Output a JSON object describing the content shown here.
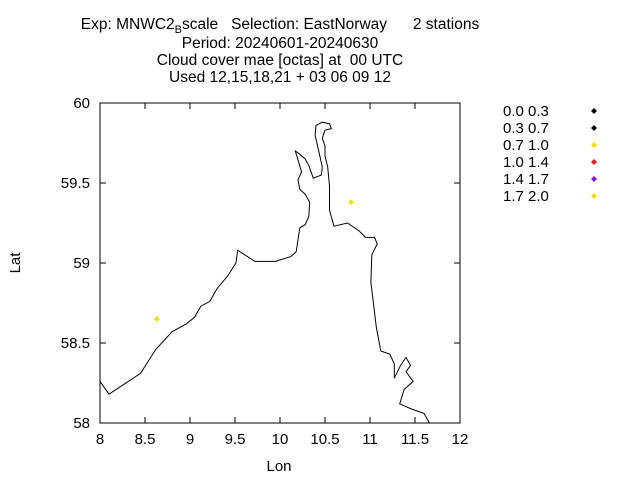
{
  "title": {
    "exp_label": "Exp: MNWC2",
    "exp_subscript": "B",
    "exp_suffix": "scale",
    "selection": "Selection: EastNorway",
    "stations": "2 stations",
    "period": "Period: 20240601-20240630",
    "variable": "Cloud cover mae [octas] at  00 UTC",
    "used": "Used 12,15,18,21 + 03 06 09 12"
  },
  "chart_data": {
    "type": "scatter",
    "xlabel": "Lon",
    "ylabel": "Lat",
    "xlim": [
      8,
      12
    ],
    "ylim": [
      58,
      60
    ],
    "x_ticks": [
      "8",
      "8.5",
      "9",
      "9.5",
      "10",
      "10.5",
      "11",
      "11.5",
      "12"
    ],
    "y_ticks": [
      "58",
      "58.5",
      "59",
      "59.5",
      "60"
    ],
    "points": [
      {
        "lon": 8.63,
        "lat": 58.65,
        "color": "#f0e000"
      },
      {
        "lon": 10.79,
        "lat": 59.38,
        "color": "#f0e000"
      }
    ],
    "legend": [
      {
        "label": "0.0 0.3",
        "color": "#000000"
      },
      {
        "label": "0.3 0.7",
        "color": "#000000"
      },
      {
        "label": "0.7 1.0",
        "color": "#f0e000"
      },
      {
        "label": "1.0 1.4",
        "color": "#e02020"
      },
      {
        "label": "1.4 1.7",
        "color": "#8a1ad0"
      },
      {
        "label": "1.7 2.0",
        "color": "#f0e000"
      }
    ],
    "legend_position": "right",
    "coastline": [
      [
        8.0,
        58.26
      ],
      [
        8.1,
        58.18
      ],
      [
        8.45,
        58.31
      ],
      [
        8.62,
        58.46
      ],
      [
        8.8,
        58.57
      ],
      [
        8.96,
        58.62
      ],
      [
        9.05,
        58.66
      ],
      [
        9.12,
        58.73
      ],
      [
        9.22,
        58.76
      ],
      [
        9.3,
        58.84
      ],
      [
        9.42,
        58.92
      ],
      [
        9.51,
        59.0
      ],
      [
        9.53,
        59.08
      ],
      [
        9.72,
        59.01
      ],
      [
        9.95,
        59.01
      ],
      [
        10.12,
        59.04
      ],
      [
        10.18,
        59.07
      ],
      [
        10.22,
        59.22
      ],
      [
        10.28,
        59.24
      ],
      [
        10.32,
        59.29
      ],
      [
        10.33,
        59.38
      ],
      [
        10.28,
        59.43
      ],
      [
        10.22,
        59.46
      ],
      [
        10.2,
        59.52
      ],
      [
        10.24,
        59.57
      ],
      [
        10.17,
        59.7
      ],
      [
        10.22,
        59.68
      ],
      [
        10.28,
        59.65
      ],
      [
        10.32,
        59.61
      ],
      [
        10.37,
        59.53
      ],
      [
        10.46,
        59.55
      ],
      [
        10.47,
        59.6
      ],
      [
        10.43,
        59.7
      ],
      [
        10.39,
        59.8
      ],
      [
        10.4,
        59.86
      ],
      [
        10.47,
        59.88
      ],
      [
        10.55,
        59.87
      ],
      [
        10.57,
        59.84
      ],
      [
        10.5,
        59.83
      ],
      [
        10.47,
        59.78
      ],
      [
        10.5,
        59.73
      ],
      [
        10.5,
        59.67
      ],
      [
        10.53,
        59.6
      ],
      [
        10.55,
        59.48
      ],
      [
        10.55,
        59.33
      ],
      [
        10.6,
        59.23
      ],
      [
        10.75,
        59.25
      ],
      [
        10.88,
        59.2
      ],
      [
        10.95,
        59.16
      ],
      [
        11.05,
        59.16
      ],
      [
        11.08,
        59.12
      ],
      [
        11.02,
        59.05
      ],
      [
        11.01,
        58.88
      ],
      [
        11.07,
        58.6
      ],
      [
        11.12,
        58.45
      ],
      [
        11.22,
        58.43
      ],
      [
        11.27,
        58.37
      ],
      [
        11.27,
        58.28
      ],
      [
        11.34,
        58.36
      ],
      [
        11.4,
        58.41
      ],
      [
        11.45,
        58.36
      ],
      [
        11.4,
        58.32
      ],
      [
        11.48,
        58.26
      ],
      [
        11.38,
        58.21
      ],
      [
        11.33,
        58.12
      ],
      [
        11.45,
        58.09
      ],
      [
        11.6,
        58.06
      ],
      [
        11.66,
        58.0
      ]
    ]
  }
}
